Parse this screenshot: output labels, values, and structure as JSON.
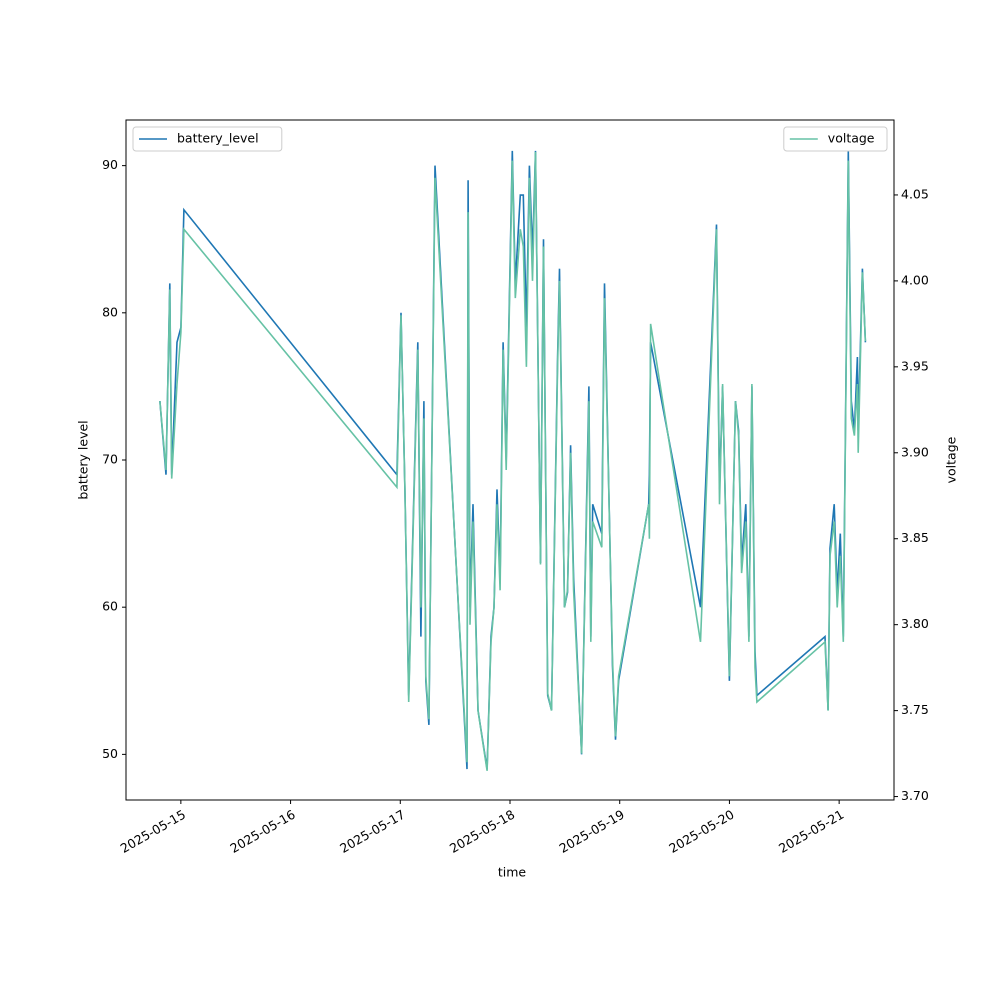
{
  "chart_data": {
    "type": "line",
    "x_label": "time",
    "y_label": "battery level",
    "y2_label": "voltage",
    "x": [
      "2025-05-14T19:25",
      "2025-05-14T20:45",
      "2025-05-14T21:35",
      "2025-05-14T22:00",
      "2025-05-14T23:10",
      "2025-05-15T00:00",
      "2025-05-15T00:40",
      "2025-05-16T23:15",
      "2025-05-17T00:10",
      "2025-05-17T01:00",
      "2025-05-17T01:50",
      "2025-05-17T03:50",
      "2025-05-17T04:30",
      "2025-05-17T05:10",
      "2025-05-17T05:35",
      "2025-05-17T06:15",
      "2025-05-17T07:35",
      "2025-05-17T14:35",
      "2025-05-17T14:50",
      "2025-05-17T15:15",
      "2025-05-17T15:55",
      "2025-05-17T17:00",
      "2025-05-17T19:00",
      "2025-05-17T19:50",
      "2025-05-17T20:30",
      "2025-05-17T21:10",
      "2025-05-17T21:50",
      "2025-05-17T22:30",
      "2025-05-17T23:10",
      "2025-05-18T00:30",
      "2025-05-18T01:10",
      "2025-05-18T02:15",
      "2025-05-18T02:55",
      "2025-05-18T03:35",
      "2025-05-18T04:15",
      "2025-05-18T04:55",
      "2025-05-18T05:35",
      "2025-05-18T06:40",
      "2025-05-18T07:20",
      "2025-05-18T08:15",
      "2025-05-18T09:05",
      "2025-05-18T10:25",
      "2025-05-18T10:50",
      "2025-05-18T11:55",
      "2025-05-18T12:35",
      "2025-05-18T13:15",
      "2025-05-18T13:55",
      "2025-05-18T15:40",
      "2025-05-18T17:15",
      "2025-05-18T17:40",
      "2025-05-18T18:05",
      "2025-05-18T20:05",
      "2025-05-18T20:40",
      "2025-05-18T22:25",
      "2025-05-18T23:05",
      "2025-05-18T23:45",
      "2025-05-19T06:20",
      "2025-05-19T06:30",
      "2025-05-19T06:45",
      "2025-05-19T17:40",
      "2025-05-19T21:10",
      "2025-05-19T21:50",
      "2025-05-19T22:30",
      "2025-05-20T00:00",
      "2025-05-20T01:20",
      "2025-05-20T02:00",
      "2025-05-20T02:40",
      "2025-05-20T03:35",
      "2025-05-20T04:15",
      "2025-05-20T04:55",
      "2025-05-20T05:35",
      "2025-05-20T06:00",
      "2025-05-20T20:55",
      "2025-05-20T21:35",
      "2025-05-20T22:00",
      "2025-05-20T22:55",
      "2025-05-20T23:35",
      "2025-05-21T00:15",
      "2025-05-21T00:55",
      "2025-05-21T02:00",
      "2025-05-21T02:40",
      "2025-05-21T03:20",
      "2025-05-21T04:00",
      "2025-05-21T04:10",
      "2025-05-21T05:05",
      "2025-05-21T05:45"
    ],
    "series": [
      {
        "name": "battery_level",
        "color": "#1f77b4",
        "axis": "y",
        "values": [
          74,
          69,
          82,
          69,
          78,
          79,
          87,
          69,
          80,
          68,
          54,
          78,
          58,
          74,
          55,
          52,
          90,
          49,
          89,
          60,
          67,
          53,
          49,
          58,
          60,
          68,
          62,
          78,
          70,
          91,
          82,
          88,
          88,
          79,
          90,
          84,
          91,
          63,
          85,
          54,
          53,
          77,
          83,
          60,
          61,
          71,
          62,
          50,
          75,
          58,
          67,
          65,
          82,
          56,
          51,
          55,
          67,
          69,
          78,
          60,
          86,
          68,
          75,
          55,
          74,
          72,
          63,
          67,
          58,
          75,
          57,
          54,
          58,
          53,
          64,
          67,
          61,
          65,
          58,
          91,
          74,
          72,
          77,
          72,
          83,
          78
        ]
      },
      {
        "name": "voltage",
        "color": "#66c2a5",
        "axis": "y2",
        "values": [
          3.93,
          3.89,
          3.995,
          3.885,
          3.94,
          3.97,
          4.03,
          3.88,
          3.98,
          3.88,
          3.755,
          3.96,
          3.81,
          3.92,
          3.77,
          3.745,
          4.06,
          3.72,
          4.04,
          3.8,
          3.86,
          3.75,
          3.715,
          3.79,
          3.81,
          3.87,
          3.82,
          3.96,
          3.89,
          4.07,
          3.99,
          4.03,
          4.02,
          3.95,
          4.06,
          4.0,
          4.075,
          3.835,
          4.02,
          3.76,
          3.75,
          3.95,
          4.0,
          3.81,
          3.82,
          3.9,
          3.82,
          3.725,
          3.93,
          3.79,
          3.86,
          3.845,
          3.99,
          3.78,
          3.735,
          3.77,
          3.87,
          3.85,
          3.975,
          3.79,
          4.03,
          3.87,
          3.94,
          3.77,
          3.93,
          3.91,
          3.83,
          3.86,
          3.79,
          3.94,
          3.775,
          3.755,
          3.79,
          3.75,
          3.84,
          3.86,
          3.81,
          3.84,
          3.79,
          4.07,
          3.92,
          3.91,
          3.94,
          3.9,
          4.005,
          3.965
        ]
      }
    ],
    "xlim": [
      "2025-05-14T12:00",
      "2025-05-21T12:00"
    ],
    "xticks": [
      {
        "value": "2025-05-15T00:00",
        "label": "2025-05-15"
      },
      {
        "value": "2025-05-16T00:00",
        "label": "2025-05-16"
      },
      {
        "value": "2025-05-17T00:00",
        "label": "2025-05-17"
      },
      {
        "value": "2025-05-18T00:00",
        "label": "2025-05-18"
      },
      {
        "value": "2025-05-19T00:00",
        "label": "2025-05-19"
      },
      {
        "value": "2025-05-20T00:00",
        "label": "2025-05-20"
      },
      {
        "value": "2025-05-21T00:00",
        "label": "2025-05-21"
      }
    ],
    "ylim": [
      46.9,
      93.1
    ],
    "yticks": [
      50,
      60,
      70,
      80,
      90
    ],
    "y2lim": [
      3.698,
      4.0936
    ],
    "y2ticks": [
      {
        "value": 3.7,
        "label": "3.70"
      },
      3.75,
      {
        "value": 3.8,
        "label": "3.80"
      },
      3.85,
      {
        "value": 3.9,
        "label": "3.90"
      },
      3.95,
      {
        "value": 4.0,
        "label": "4.00"
      },
      4.05
    ],
    "legend": [
      "upper left",
      "upper right"
    ]
  }
}
